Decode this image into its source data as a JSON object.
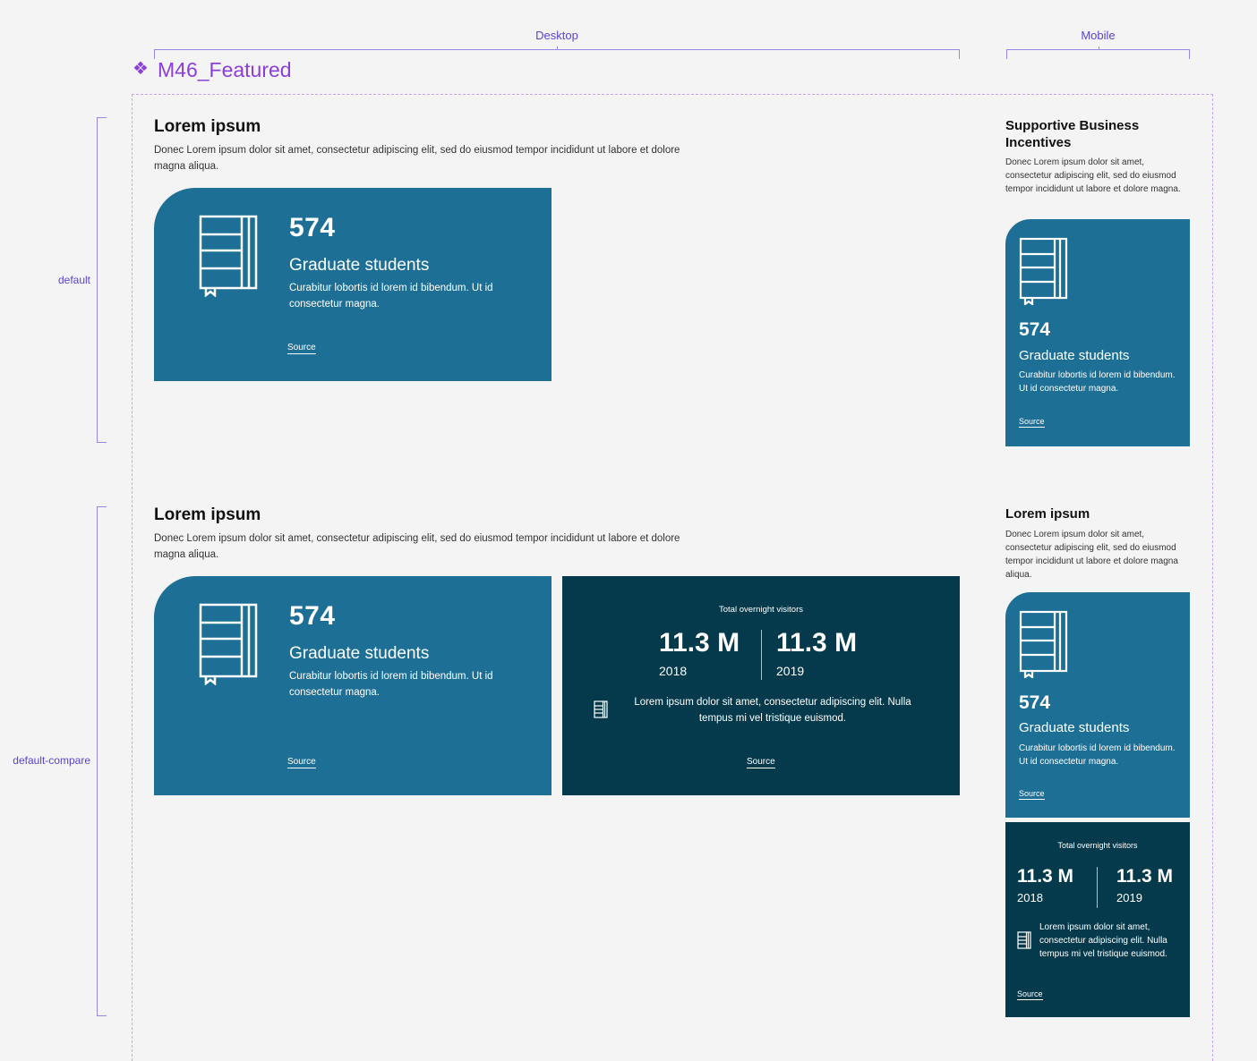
{
  "columns": {
    "desktop": "Desktop",
    "mobile": "Mobile"
  },
  "component": {
    "title": "M46_Featured",
    "icon": "component-diamond-icon"
  },
  "variants": {
    "default": "default",
    "compare": "default-compare"
  },
  "default_section": {
    "desktop": {
      "title": "Lorem ipsum",
      "description": "Donec Lorem ipsum dolor sit amet, consectetur adipiscing elit, sed do eiusmod tempor incididunt ut labore et dolore magna aliqua.",
      "card": {
        "icon": "book-icon",
        "number": "574",
        "subtitle": "Graduate students",
        "text": "Curabitur lobortis id lorem id bibendum. Ut id consectetur magna.",
        "source": "Source"
      }
    },
    "mobile": {
      "title": "Supportive Business Incentives",
      "description": "Donec Lorem ipsum dolor sit amet, consectetur adipiscing elit, sed do eiusmod tempor incididunt ut labore et dolore magna.",
      "card": {
        "icon": "book-icon",
        "number": "574",
        "subtitle": "Graduate students",
        "text": "Curabitur lobortis id lorem id bibendum. Ut id consectetur magna.",
        "source": "Source"
      }
    }
  },
  "compare_section": {
    "desktop": {
      "title": "Lorem ipsum",
      "description": "Donec Lorem ipsum dolor sit amet, consectetur adipiscing elit, sed do eiusmod tempor incididunt ut labore et dolore magna aliqua.",
      "card": {
        "icon": "book-icon",
        "number": "574",
        "subtitle": "Graduate students",
        "text": "Curabitur lobortis id lorem id bibendum. Ut id consectetur magna.",
        "source": "Source"
      },
      "compare": {
        "caption": "Total overnight visitors",
        "left": {
          "value": "11.3 M",
          "year": "2018"
        },
        "right": {
          "value": "11.3 M",
          "year": "2019"
        },
        "icon": "book-icon",
        "text": "Lorem ipsum dolor sit amet, consectetur adipiscing elit. Nulla tempus mi vel tristique euismod.",
        "source": "Source"
      }
    },
    "mobile": {
      "title": "Lorem ipsum",
      "description": "Donec Lorem ipsum dolor sit amet, consectetur adipiscing elit, sed do eiusmod tempor incididunt ut labore et dolore magna aliqua.",
      "card": {
        "icon": "book-icon",
        "number": "574",
        "subtitle": "Graduate students",
        "text": "Curabitur lobortis id lorem id bibendum. Ut id consectetur magna.",
        "source": "Source"
      },
      "compare": {
        "caption": "Total overnight visitors",
        "left": {
          "value": "11.3 M",
          "year": "2018"
        },
        "right": {
          "value": "11.3 M",
          "year": "2019"
        },
        "icon": "book-icon",
        "text": "Lorem ipsum dolor sit amet, consectetur adipiscing elit. Nulla tempus mi vel tristique euismod.",
        "source": "Source"
      }
    }
  }
}
